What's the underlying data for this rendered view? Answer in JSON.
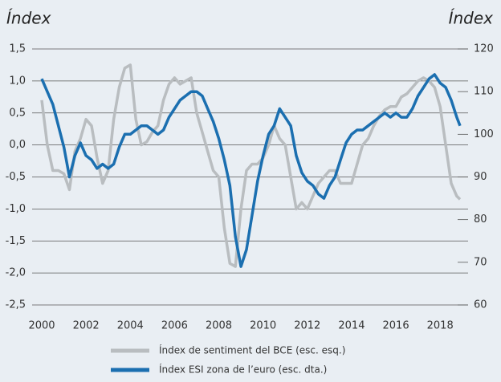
{
  "chart_data": {
    "type": "line",
    "y_label": "Índex",
    "y2_label": "Índex",
    "x": [
      2000.0,
      2000.25,
      2000.5,
      2000.75,
      2001.0,
      2001.25,
      2001.5,
      2001.75,
      2002.0,
      2002.25,
      2002.5,
      2002.75,
      2003.0,
      2003.25,
      2003.5,
      2003.75,
      2004.0,
      2004.25,
      2004.5,
      2004.75,
      2005.0,
      2005.25,
      2005.5,
      2005.75,
      2006.0,
      2006.25,
      2006.5,
      2006.75,
      2007.0,
      2007.25,
      2007.5,
      2007.75,
      2008.0,
      2008.25,
      2008.5,
      2008.75,
      2009.0,
      2009.25,
      2009.5,
      2009.75,
      2010.0,
      2010.25,
      2010.5,
      2010.75,
      2011.0,
      2011.25,
      2011.5,
      2011.75,
      2012.0,
      2012.25,
      2012.5,
      2012.75,
      2013.0,
      2013.25,
      2013.5,
      2013.75,
      2014.0,
      2014.25,
      2014.5,
      2014.75,
      2015.0,
      2015.25,
      2015.5,
      2015.75,
      2016.0,
      2016.25,
      2016.5,
      2016.75,
      2017.0,
      2017.25,
      2017.5,
      2017.75,
      2018.0,
      2018.25,
      2018.5,
      2018.75,
      2018.9
    ],
    "series": [
      {
        "name": "Índex de sentiment del BCE (esc. esq.)",
        "color": "#b9bdc0",
        "axis": "y",
        "values": [
          0.7,
          0.0,
          -0.4,
          -0.4,
          -0.45,
          -0.7,
          -0.1,
          0.1,
          0.4,
          0.3,
          -0.2,
          -0.6,
          -0.4,
          0.4,
          0.9,
          1.2,
          1.25,
          0.4,
          0.0,
          0.05,
          0.2,
          0.3,
          0.7,
          0.95,
          1.05,
          0.95,
          1.0,
          1.05,
          0.5,
          0.2,
          -0.1,
          -0.4,
          -0.5,
          -1.3,
          -1.85,
          -1.9,
          -1.0,
          -0.4,
          -0.3,
          -0.3,
          -0.2,
          0.0,
          0.3,
          0.1,
          0.0,
          -0.5,
          -1.0,
          -0.9,
          -1.0,
          -0.8,
          -0.6,
          -0.5,
          -0.4,
          -0.4,
          -0.6,
          -0.6,
          -0.6,
          -0.3,
          0.0,
          0.1,
          0.3,
          0.45,
          0.55,
          0.6,
          0.6,
          0.75,
          0.8,
          0.9,
          1.0,
          1.05,
          1.0,
          0.9,
          0.6,
          0.0,
          -0.6,
          -0.8,
          -0.85
        ]
      },
      {
        "name": "Índex ESI zona de l’euro (esc. dta.)",
        "color": "#1b6fb0",
        "axis": "y2",
        "values": [
          113,
          110,
          107,
          102,
          97,
          90,
          95,
          98,
          95,
          94,
          92,
          93,
          92,
          93,
          97,
          100,
          100,
          101,
          102,
          102,
          101,
          100,
          101,
          104,
          106,
          108,
          109,
          110,
          110,
          109,
          106,
          103,
          99,
          94,
          88,
          76,
          69,
          73,
          81,
          89,
          95,
          100,
          102,
          106,
          104,
          102,
          95,
          91,
          89,
          88,
          86,
          85,
          88,
          90,
          94,
          98,
          100,
          101,
          101,
          102,
          103,
          104,
          105,
          104,
          105,
          104,
          104,
          106,
          109,
          111,
          113,
          114,
          112,
          111,
          108,
          104,
          102
        ]
      }
    ],
    "xlim": [
      2000,
      2018.9
    ],
    "xticks": [
      2000,
      2002,
      2004,
      2006,
      2008,
      2010,
      2012,
      2014,
      2016,
      2018
    ],
    "ylim": [
      -2.5,
      1.5
    ],
    "yticks": [
      {
        "value": 1.5,
        "label": "1,5"
      },
      {
        "value": 1.0,
        "label": "1,0"
      },
      {
        "value": 0.5,
        "label": "0,5"
      },
      {
        "value": 0.0,
        "label": "0,0"
      },
      {
        "value": -0.5,
        "label": "-0,5"
      },
      {
        "value": -1.0,
        "label": "-1,0"
      },
      {
        "value": -1.5,
        "label": "-1,5"
      },
      {
        "value": -2.0,
        "label": "-2,0"
      },
      {
        "value": -2.5,
        "label": "-2,5"
      }
    ],
    "y2lim": [
      60,
      120
    ],
    "y2ticks": [
      120,
      110,
      100,
      90,
      80,
      70,
      60
    ],
    "grid": true
  }
}
